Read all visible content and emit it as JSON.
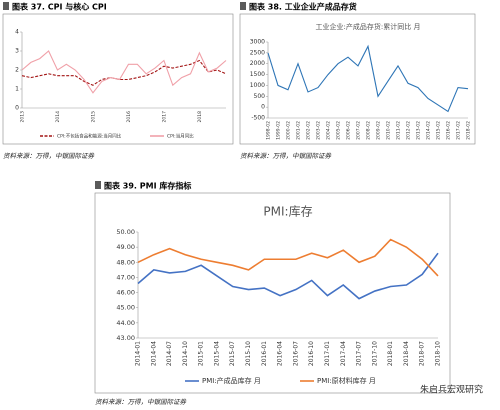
{
  "chart_data": [
    {
      "type": "line",
      "caption": "图表 37. CPI 与核心 CPI",
      "source": "资料来源：万得，中银国际证券",
      "categories": [
        "2013",
        null,
        null,
        null,
        "2014",
        null,
        null,
        null,
        "2015",
        null,
        null,
        null,
        "2016",
        null,
        null,
        null,
        "2017",
        null,
        null,
        null,
        "2018",
        null,
        null,
        null
      ],
      "ylim": [
        0,
        4
      ],
      "yticks": [
        0,
        1,
        2,
        3,
        4
      ],
      "series": [
        {
          "name": "CPI:不包括食品和能源:当月同比",
          "color": "#a31515",
          "dashed": true,
          "values": [
            1.7,
            1.6,
            1.7,
            1.8,
            1.7,
            1.7,
            1.7,
            1.4,
            1.2,
            1.5,
            1.6,
            1.5,
            1.5,
            1.6,
            1.7,
            1.9,
            2.2,
            2.1,
            2.2,
            2.3,
            2.5,
            1.9,
            2.0,
            1.8
          ]
        },
        {
          "name": "CPI:当月同比",
          "color": "#f0a0a8",
          "values": [
            2.0,
            2.4,
            2.6,
            3.0,
            2.0,
            2.3,
            2.0,
            1.5,
            0.8,
            1.4,
            1.6,
            1.5,
            2.3,
            2.3,
            1.8,
            2.1,
            2.5,
            1.2,
            1.6,
            1.8,
            2.9,
            1.9,
            2.1,
            2.5
          ]
        }
      ]
    },
    {
      "type": "line",
      "caption": "图表 38. 工业企业产成品存货",
      "title": "工业企业:产成品存货:累计同比 月",
      "source": "资料来源：万得，中银国际证券",
      "categories": [
        "1998-02",
        "1999-02",
        "2000-02",
        "2001-02",
        "2002-02",
        "2003-02",
        "2004-02",
        "2005-02",
        "2006-02",
        "2007-02",
        "2008-02",
        "2009-02",
        "2010-02",
        "2011-02",
        "2012-02",
        "2013-02",
        "2014-02",
        "2015-02",
        "2016-02",
        "2017-02",
        "2018-02"
      ],
      "ylim": [
        -500,
        3000
      ],
      "yticks": [
        -500,
        0,
        500,
        1000,
        1500,
        2000,
        2500,
        3000
      ],
      "series": [
        {
          "name": "工业企业:产成品存货:累计同比 月",
          "color": "#2e75b6",
          "values": [
            2500,
            1000,
            800,
            2000,
            700,
            900,
            1500,
            2000,
            2300,
            1900,
            2800,
            500,
            1200,
            1900,
            1100,
            900,
            400,
            100,
            -200,
            900,
            850
          ]
        }
      ]
    },
    {
      "type": "line",
      "caption": "图表 39. PMI 库存指标",
      "title": "PMI:库存",
      "source": "资料来源：万得，中银国际证券",
      "categories": [
        "2014-01",
        "2014-04",
        "2014-07",
        "2014-10",
        "2015-01",
        "2015-04",
        "2015-07",
        "2015-10",
        "2016-01",
        "2016-04",
        "2016-07",
        "2016-10",
        "2017-01",
        "2017-04",
        "2017-07",
        "2017-10",
        "2018-01",
        "2018-04",
        "2018-07",
        "2018-10"
      ],
      "ylim": [
        43,
        50
      ],
      "yticks": [
        {
          "value": 43,
          "label": "43.00"
        },
        {
          "value": 44,
          "label": "44.00"
        },
        {
          "value": 45,
          "label": "45.00"
        },
        {
          "value": 46,
          "label": "46.00"
        },
        {
          "value": 47,
          "label": "47.00"
        },
        {
          "value": 48,
          "label": "48.00"
        },
        {
          "value": 49,
          "label": "49.00"
        },
        {
          "value": 50,
          "label": "50.00"
        }
      ],
      "series": [
        {
          "name": "PMI:产成品库存 月",
          "color": "#4472c4",
          "values": [
            46.6,
            47.5,
            47.3,
            47.4,
            47.8,
            47.1,
            46.4,
            46.2,
            46.3,
            45.8,
            46.2,
            46.8,
            45.8,
            46.5,
            45.6,
            46.1,
            46.4,
            46.5,
            47.2,
            48.6
          ]
        },
        {
          "name": "PMI:原材料库存 月",
          "color": "#ed7d31",
          "values": [
            48.0,
            48.5,
            48.9,
            48.5,
            48.2,
            48.0,
            47.8,
            47.5,
            48.2,
            48.2,
            48.2,
            48.6,
            48.3,
            48.8,
            48.0,
            48.4,
            49.5,
            49.0,
            48.2,
            47.1
          ]
        }
      ]
    }
  ],
  "watermark": "朱启兵宏观研究"
}
